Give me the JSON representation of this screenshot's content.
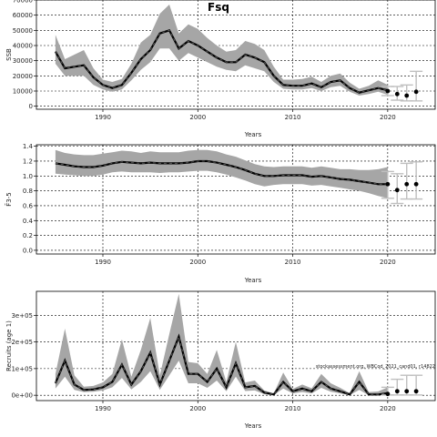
{
  "figure": {
    "title": "Fsq",
    "note": "stockassessment.org, WBCod_2021_cand01, r14822"
  },
  "chart_data": [
    {
      "type": "line",
      "xlabel": "Years",
      "ylabel": "SSB",
      "xlim": [
        1983,
        2025
      ],
      "ylim": [
        -2000,
        70000
      ],
      "xticks": [
        1990,
        2000,
        2010,
        2020
      ],
      "yticks": [
        0,
        10000,
        20000,
        30000,
        40000,
        50000,
        60000,
        70000
      ],
      "ytick_labels": [
        "0",
        "10000",
        "20000",
        "30000",
        "40000",
        "50000",
        "60000",
        "70000"
      ],
      "grid": true,
      "series": [
        {
          "x": [
            1985,
            1986,
            1987,
            1988,
            1989,
            1990,
            1991,
            1992,
            1993,
            1994,
            1995,
            1996,
            1997,
            1998,
            1999,
            2000,
            2001,
            2002,
            2003,
            2004,
            2005,
            2006,
            2007,
            2008,
            2009,
            2010,
            2011,
            2012,
            2013,
            2014,
            2015,
            2016,
            2017,
            2018,
            2019,
            2020
          ],
          "values": [
            36000,
            25000,
            26000,
            27000,
            19000,
            14000,
            12000,
            14000,
            22000,
            31000,
            37000,
            48000,
            50000,
            38000,
            43000,
            40000,
            36000,
            32000,
            29000,
            29000,
            34000,
            32000,
            29000,
            20000,
            14000,
            13500,
            13500,
            15000,
            12500,
            16000,
            17000,
            12000,
            9000,
            10500,
            12000,
            10500
          ],
          "lower": [
            28000,
            20000,
            20000,
            20000,
            14000,
            11000,
            9500,
            11000,
            17000,
            24000,
            29000,
            38000,
            38000,
            30000,
            35000,
            32000,
            29000,
            26000,
            24000,
            23000,
            27000,
            25000,
            23000,
            16000,
            11500,
            11000,
            11000,
            12000,
            10000,
            12500,
            13500,
            9500,
            7000,
            8000,
            9500,
            7500
          ],
          "upper": [
            47000,
            31000,
            34000,
            37000,
            25000,
            17500,
            16000,
            18000,
            28000,
            42000,
            47000,
            61000,
            67000,
            48000,
            54000,
            51000,
            45000,
            40000,
            36000,
            37000,
            43000,
            41000,
            37000,
            26000,
            17500,
            17500,
            18000,
            19500,
            16000,
            20000,
            21500,
            15500,
            11500,
            13500,
            17000,
            14000
          ]
        }
      ],
      "projection": [
        {
          "x": 2020,
          "y": 10000,
          "lo": 7000,
          "hi": 13000
        },
        {
          "x": 2021,
          "y": 8000,
          "lo": 4000,
          "hi": 13000
        },
        {
          "x": 2022,
          "y": 7000,
          "lo": 3500,
          "hi": 14000
        },
        {
          "x": 2023,
          "y": 9500,
          "lo": 3500,
          "hi": 23000
        }
      ]
    },
    {
      "type": "line",
      "xlabel": "Years",
      "ylabel": "F̄3-5",
      "xlim": [
        1983,
        2025
      ],
      "ylim": [
        -0.05,
        1.42
      ],
      "xticks": [
        1990,
        2000,
        2010,
        2020
      ],
      "yticks": [
        0.0,
        0.2,
        0.4,
        0.6,
        0.8,
        1.0,
        1.2,
        1.4
      ],
      "ytick_labels": [
        "0.0",
        "0.2",
        "0.4",
        "0.6",
        "0.8",
        "1.0",
        "1.2",
        "1.4"
      ],
      "grid": true,
      "series": [
        {
          "x": [
            1985,
            1986,
            1987,
            1988,
            1989,
            1990,
            1991,
            1992,
            1993,
            1994,
            1995,
            1996,
            1997,
            1998,
            1999,
            2000,
            2001,
            2002,
            2003,
            2004,
            2005,
            2006,
            2007,
            2008,
            2009,
            2010,
            2011,
            2012,
            2013,
            2014,
            2015,
            2016,
            2017,
            2018,
            2019,
            2020
          ],
          "values": [
            1.17,
            1.15,
            1.13,
            1.12,
            1.12,
            1.14,
            1.17,
            1.19,
            1.18,
            1.17,
            1.18,
            1.17,
            1.17,
            1.17,
            1.18,
            1.2,
            1.2,
            1.18,
            1.15,
            1.12,
            1.08,
            1.03,
            1.0,
            1.0,
            1.01,
            1.01,
            1.01,
            0.99,
            1.0,
            0.98,
            0.96,
            0.95,
            0.93,
            0.91,
            0.89,
            0.89
          ],
          "lower": [
            1.03,
            1.02,
            1.01,
            1.0,
            1.0,
            1.02,
            1.05,
            1.06,
            1.05,
            1.05,
            1.05,
            1.04,
            1.05,
            1.05,
            1.06,
            1.07,
            1.07,
            1.05,
            1.02,
            0.98,
            0.94,
            0.89,
            0.86,
            0.88,
            0.89,
            0.89,
            0.89,
            0.87,
            0.88,
            0.86,
            0.84,
            0.82,
            0.8,
            0.77,
            0.73,
            0.7
          ],
          "upper": [
            1.35,
            1.31,
            1.29,
            1.28,
            1.28,
            1.3,
            1.32,
            1.34,
            1.33,
            1.31,
            1.33,
            1.32,
            1.32,
            1.32,
            1.34,
            1.35,
            1.35,
            1.33,
            1.29,
            1.26,
            1.21,
            1.16,
            1.13,
            1.12,
            1.13,
            1.13,
            1.13,
            1.11,
            1.13,
            1.11,
            1.09,
            1.09,
            1.08,
            1.08,
            1.09,
            1.12
          ]
        }
      ],
      "projection": [
        {
          "x": 2020,
          "y": 0.89,
          "lo": 0.7,
          "hi": 1.06
        },
        {
          "x": 2021,
          "y": 0.81,
          "lo": 0.63,
          "hi": 1.03
        },
        {
          "x": 2022,
          "y": 0.89,
          "lo": 0.69,
          "hi": 1.17
        },
        {
          "x": 2023,
          "y": 0.89,
          "lo": 0.69,
          "hi": 1.19
        }
      ]
    },
    {
      "type": "line",
      "xlabel": "Years",
      "ylabel": "Recruits (age 1)",
      "xlim": [
        1983,
        2025
      ],
      "ylim": [
        -20000,
        390000
      ],
      "xticks": [
        1990,
        2000,
        2010,
        2020
      ],
      "yticks": [
        0,
        100000,
        200000,
        300000
      ],
      "ytick_labels": [
        "0e+00",
        "1e+05",
        "2e+05",
        "3e+05"
      ],
      "grid": true,
      "series": [
        {
          "x": [
            1985,
            1986,
            1987,
            1988,
            1989,
            1990,
            1991,
            1992,
            1993,
            1994,
            1995,
            1996,
            1997,
            1998,
            1999,
            2000,
            2001,
            2002,
            2003,
            2004,
            2005,
            2006,
            2007,
            2008,
            2009,
            2010,
            2011,
            2012,
            2013,
            2014,
            2015,
            2016,
            2017,
            2018,
            2019,
            2020
          ],
          "values": [
            45000,
            130000,
            40000,
            20000,
            22000,
            30000,
            50000,
            115000,
            40000,
            90000,
            160000,
            40000,
            130000,
            220000,
            80000,
            80000,
            50000,
            100000,
            30000,
            120000,
            30000,
            35000,
            10000,
            3000,
            50000,
            15000,
            25000,
            15000,
            50000,
            25000,
            15000,
            3000,
            50000,
            3000,
            3000,
            8000
          ],
          "lower": [
            25000,
            70000,
            20000,
            12000,
            13000,
            18000,
            30000,
            65000,
            22000,
            50000,
            90000,
            20000,
            75000,
            130000,
            45000,
            45000,
            28000,
            55000,
            15000,
            70000,
            16000,
            18000,
            4000,
            500,
            25000,
            7000,
            12000,
            7000,
            28000,
            13000,
            7000,
            500,
            20000,
            200,
            100,
            1000
          ],
          "upper": [
            80000,
            250000,
            75000,
            32000,
            35000,
            48000,
            80000,
            210000,
            70000,
            170000,
            290000,
            75000,
            230000,
            380000,
            125000,
            120000,
            80000,
            170000,
            50000,
            200000,
            48000,
            55000,
            18000,
            7000,
            85000,
            24000,
            40000,
            26000,
            80000,
            45000,
            28000,
            8000,
            90000,
            12000,
            14000,
            30000
          ]
        }
      ],
      "projection": [
        {
          "x": 2020,
          "y": 5000,
          "lo": 1000,
          "hi": 30000
        },
        {
          "x": 2021,
          "y": 15000,
          "lo": 1000,
          "hi": 60000
        },
        {
          "x": 2022,
          "y": 15000,
          "lo": 1000,
          "hi": 75000
        },
        {
          "x": 2023,
          "y": 15000,
          "lo": 1000,
          "hi": 75000
        }
      ]
    }
  ]
}
